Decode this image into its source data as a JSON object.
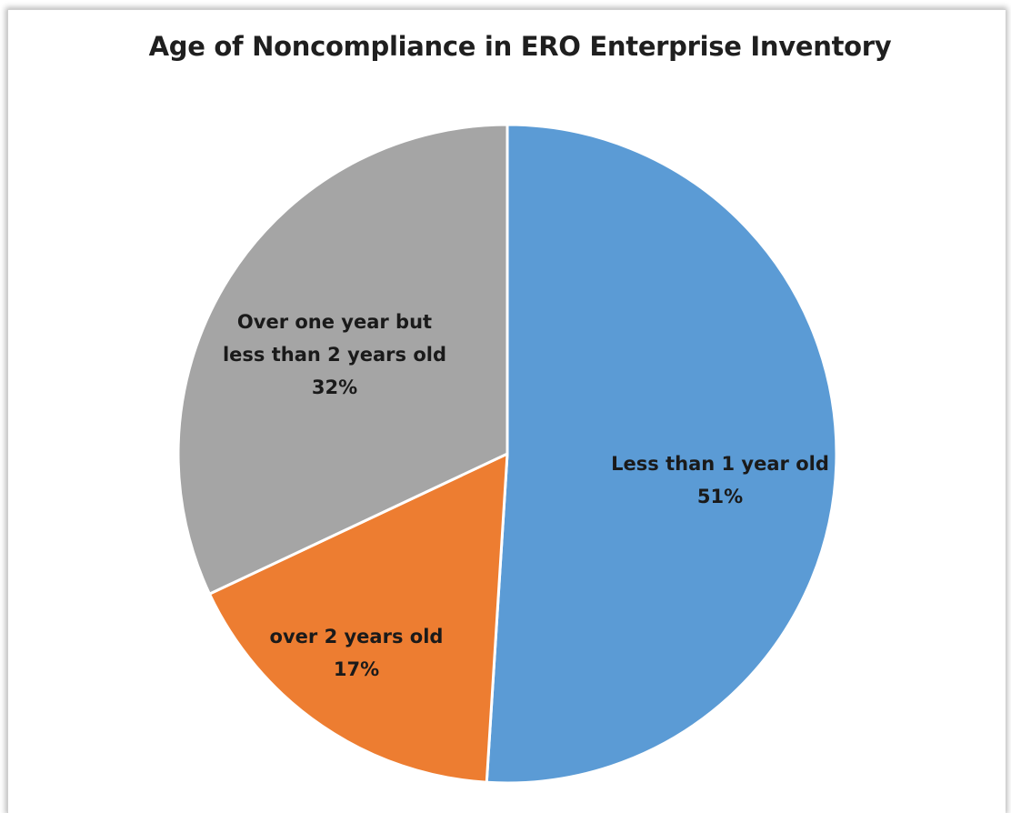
{
  "chart_data": {
    "type": "pie",
    "title": "Age of Noncompliance in ERO Enterprise Inventory",
    "slices": [
      {
        "label_lines": [
          "Less than 1 year old"
        ],
        "pct_text": "51%",
        "value": 51,
        "color": "#5b9bd5"
      },
      {
        "label_lines": [
          "over 2 years old"
        ],
        "pct_text": "17%",
        "value": 17,
        "color": "#ed7d31"
      },
      {
        "label_lines": [
          "Over one year but",
          "less than 2 years old"
        ],
        "pct_text": "32%",
        "value": 32,
        "color": "#a5a5a5"
      }
    ],
    "start_angle_deg": 0,
    "direction": "clockwise",
    "legend": "none"
  }
}
